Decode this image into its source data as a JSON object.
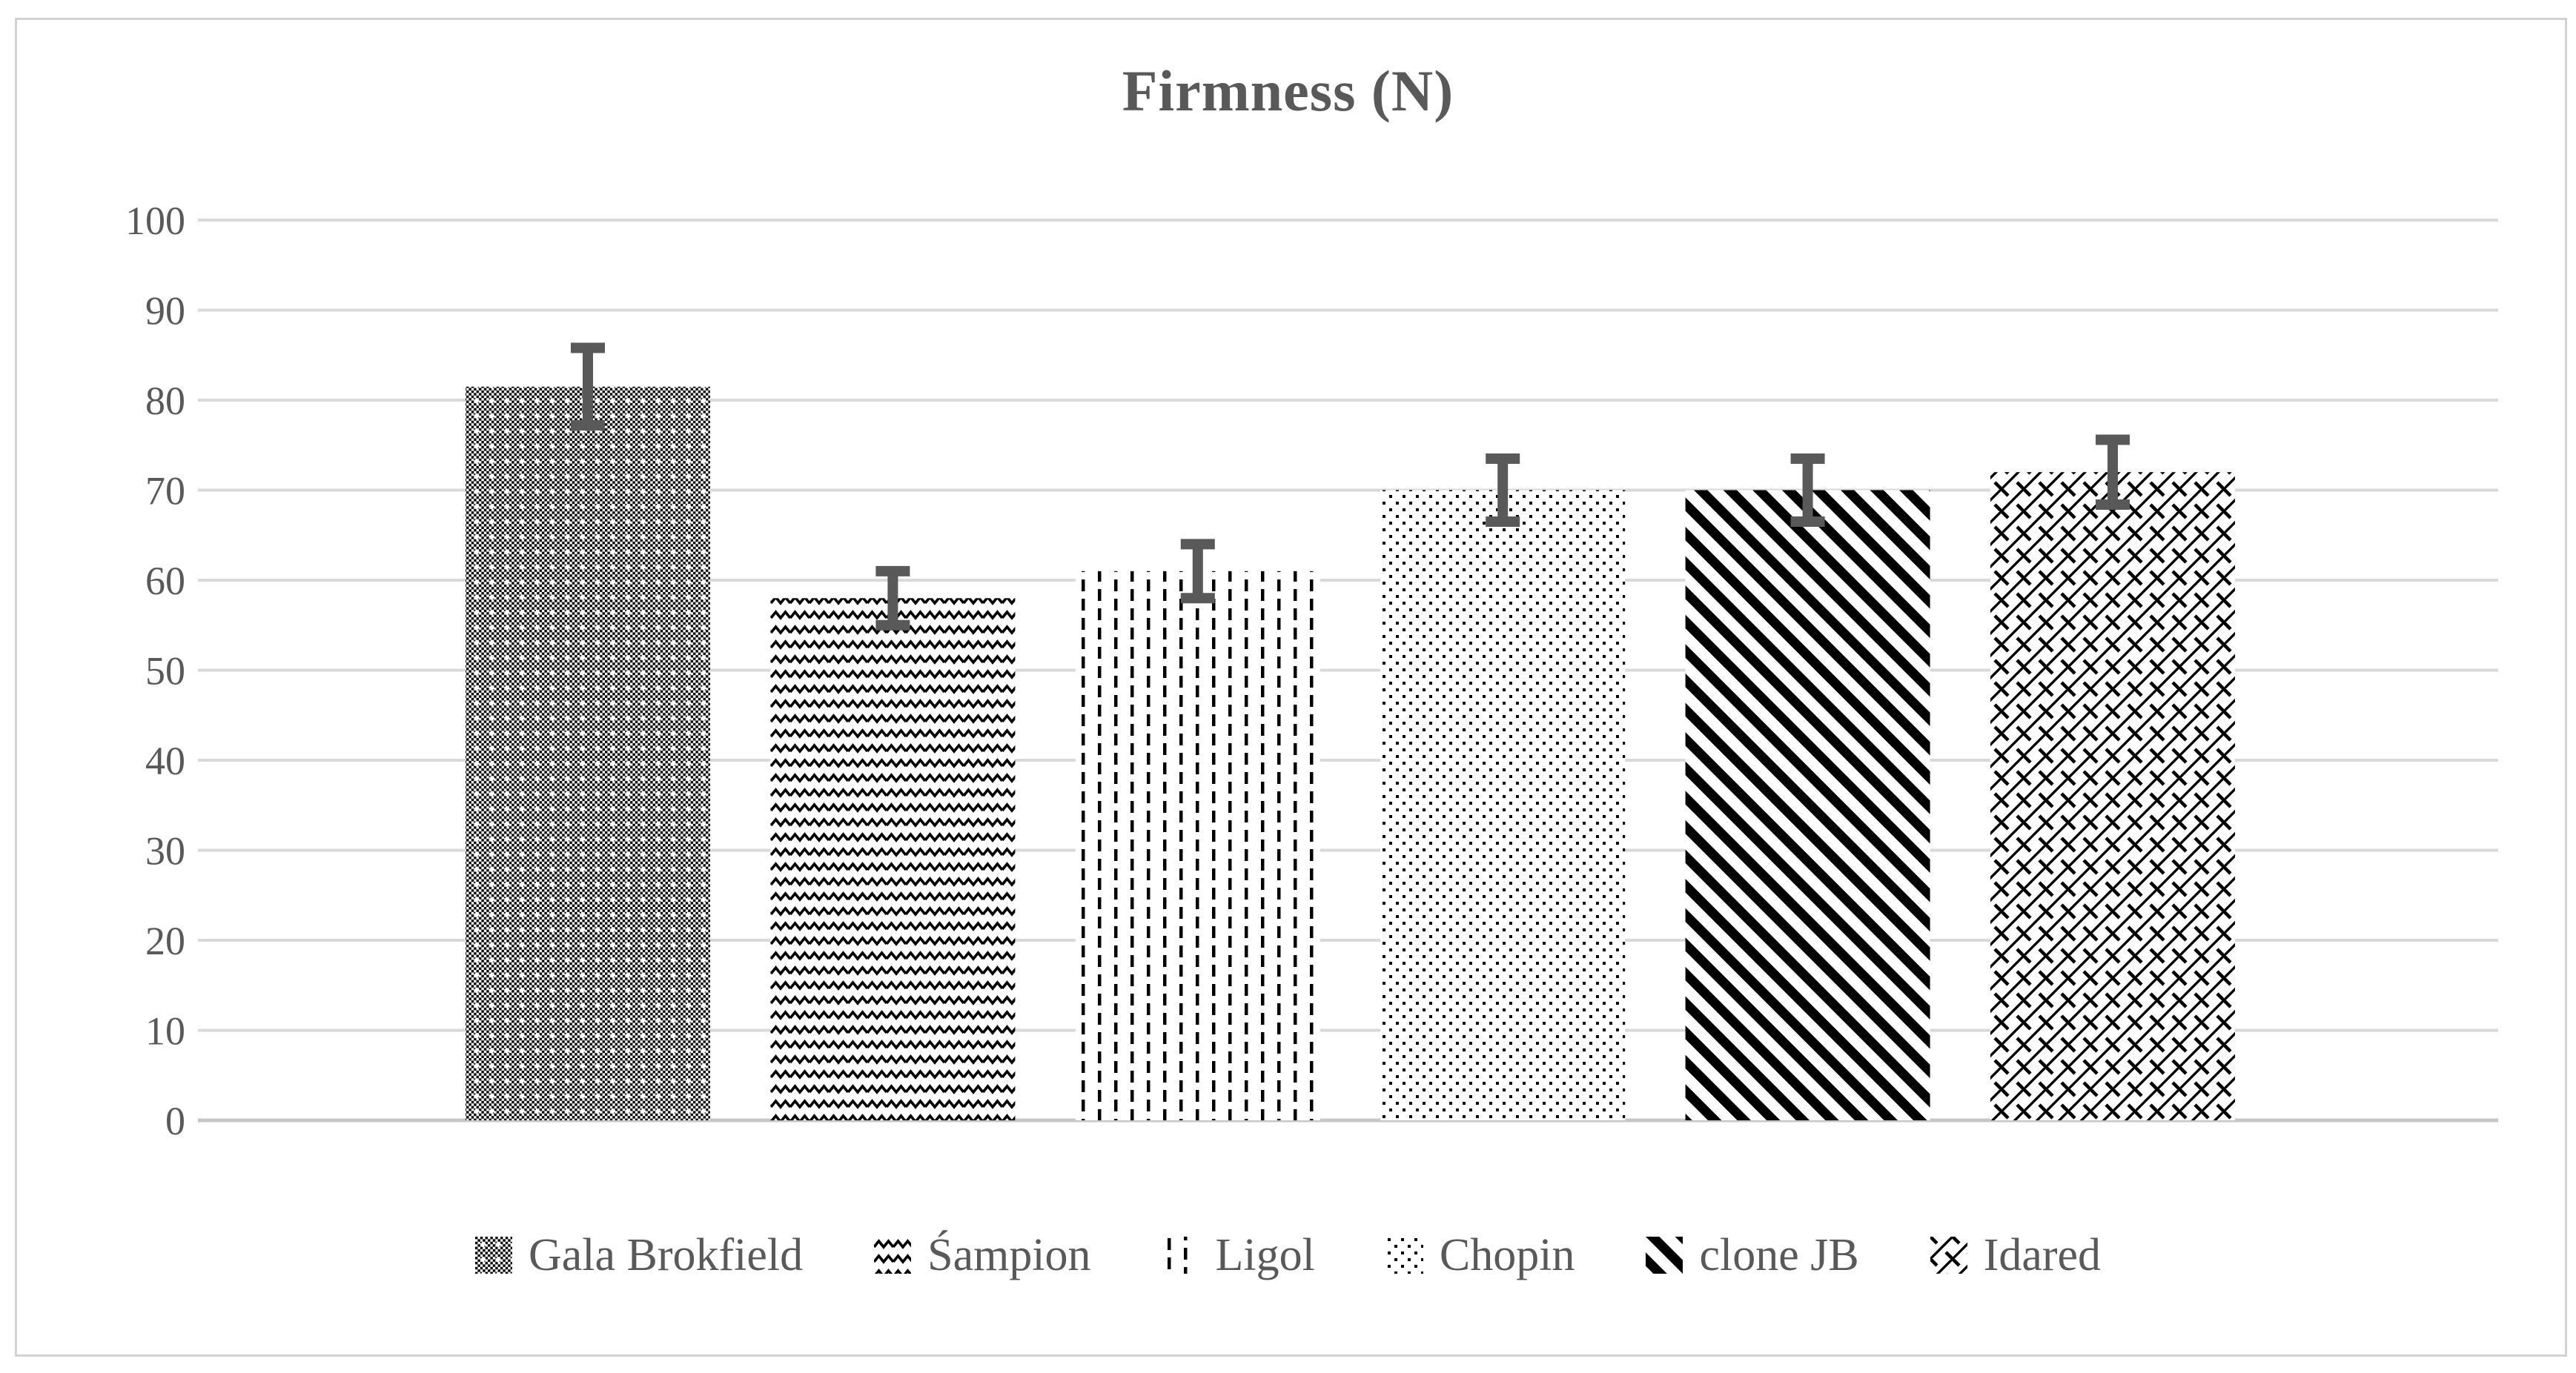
{
  "chart_data": {
    "type": "bar",
    "title": "Firmness (N)",
    "categories": [
      "Gala Brokfield",
      "Śampion",
      "Ligol",
      "Chopin",
      "clone JB",
      "Idared"
    ],
    "values": [
      81.5,
      58,
      61,
      70,
      70,
      72
    ],
    "error_bars_plus_minus": [
      4.3,
      3,
      3,
      3.5,
      3.5,
      3.6
    ],
    "xlabel": "",
    "ylabel": "",
    "ylim": [
      0,
      100
    ],
    "ytick_step": 10,
    "ytick_labels": [
      "0",
      "10",
      "20",
      "30",
      "40",
      "50",
      "60",
      "70",
      "80",
      "90",
      "100"
    ],
    "grid": true,
    "legend_position": "bottom",
    "bar_fill_patterns": [
      {
        "name": "trellis-checker-weave",
        "id": "pat-0"
      },
      {
        "name": "horizontal-zigzag-wave",
        "id": "pat-1"
      },
      {
        "name": "dashed-vertical-lines",
        "id": "pat-2"
      },
      {
        "name": "dotted-diamond-grid",
        "id": "pat-3"
      },
      {
        "name": "dark-downward-diagonal-stripes",
        "id": "pat-4"
      },
      {
        "name": "diagonal-lattice-weave",
        "id": "pat-5"
      }
    ]
  },
  "colors": {
    "background": "#ffffff",
    "frame_border": "#d2d2d2",
    "gridline": "#d9d9d9",
    "axis_line": "#c6c6c6",
    "text": "#595959",
    "error_bar": "#595959",
    "pattern_ink": "#000000"
  }
}
